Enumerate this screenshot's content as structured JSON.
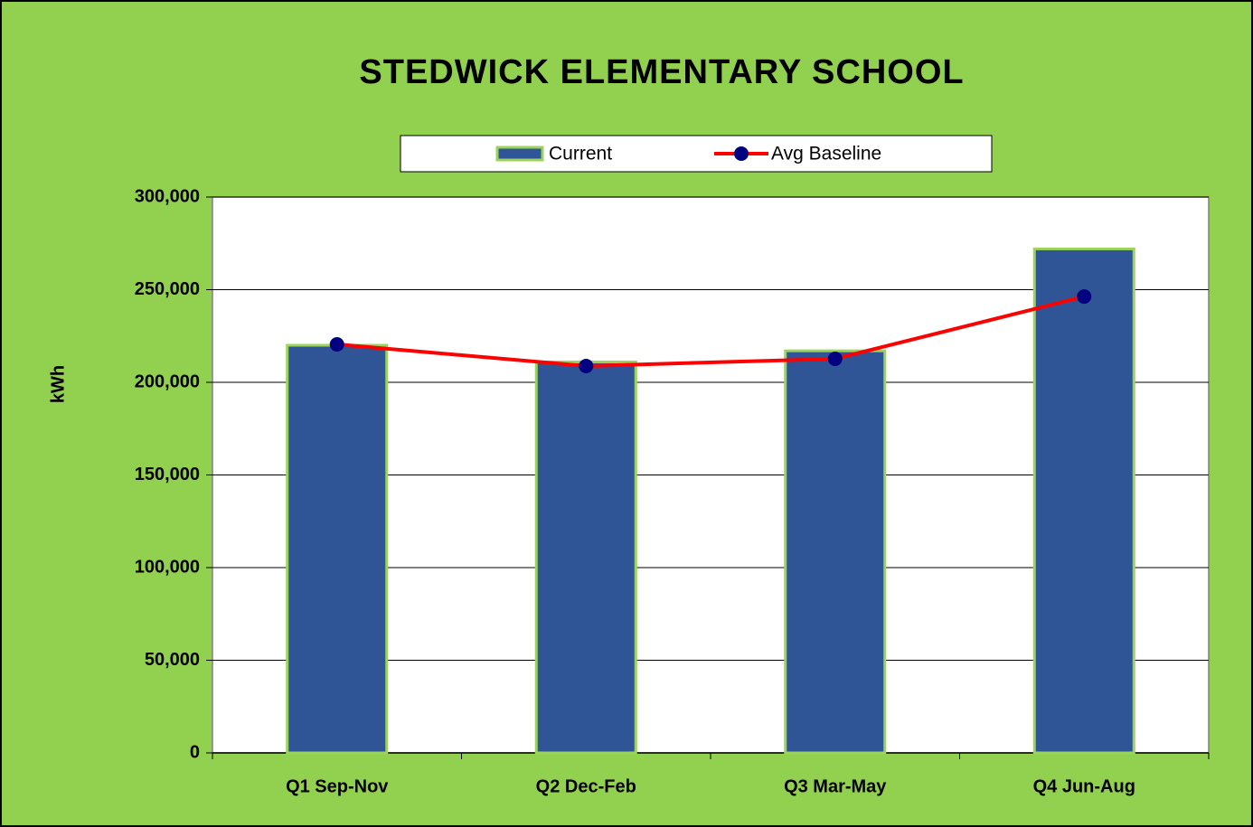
{
  "chart_data": {
    "type": "bar",
    "title": "STEDWICK ELEMENTARY SCHOOL",
    "ylabel": "kWh",
    "categories": [
      "Q1 Sep-Nov",
      "Q2 Dec-Feb",
      "Q3 Mar-May",
      "Q4 Jun-Aug"
    ],
    "series": [
      {
        "name": "Current",
        "type": "bar",
        "color": "#2f5597",
        "edgecolor": "#9bd45a",
        "values": [
          220000,
          211000,
          217000,
          272000
        ]
      },
      {
        "name": "Avg Baseline",
        "type": "line",
        "color": "#ff0000",
        "marker_color": "#000080",
        "values": [
          220500,
          208800,
          212700,
          246300
        ]
      }
    ],
    "ylim": [
      0,
      300000
    ],
    "yticks": [
      0,
      {
        "value": 50000,
        "label": "50,000"
      },
      {
        "value": 100000,
        "label": "100,000"
      },
      {
        "value": 150000,
        "label": "150,000"
      },
      {
        "value": 200000,
        "label": "200,000"
      },
      {
        "value": 250000,
        "label": "250,000"
      },
      {
        "value": 300000,
        "label": "300,000"
      }
    ],
    "grid": true,
    "legend": "top"
  }
}
